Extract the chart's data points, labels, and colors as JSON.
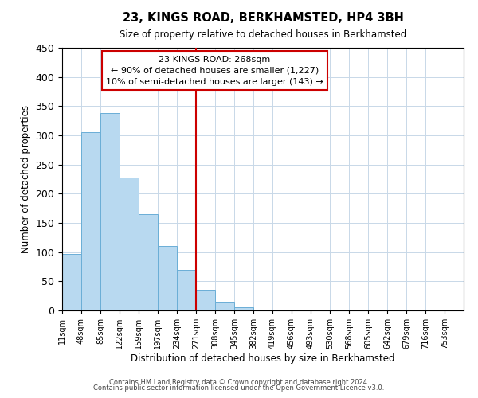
{
  "title": "23, KINGS ROAD, BERKHAMSTED, HP4 3BH",
  "subtitle": "Size of property relative to detached houses in Berkhamsted",
  "xlabel": "Distribution of detached houses by size in Berkhamsted",
  "ylabel": "Number of detached properties",
  "bin_labels": [
    "11sqm",
    "48sqm",
    "85sqm",
    "122sqm",
    "159sqm",
    "197sqm",
    "234sqm",
    "271sqm",
    "308sqm",
    "345sqm",
    "382sqm",
    "419sqm",
    "456sqm",
    "493sqm",
    "530sqm",
    "568sqm",
    "605sqm",
    "642sqm",
    "679sqm",
    "716sqm",
    "753sqm"
  ],
  "bar_values": [
    97,
    305,
    338,
    228,
    165,
    110,
    70,
    35,
    14,
    6,
    1,
    0,
    0,
    0,
    0,
    0,
    0,
    0,
    1,
    0,
    0
  ],
  "bar_color": "#b8d9f0",
  "bar_edge_color": "#6aaed6",
  "vline_x_index": 7,
  "vline_color": "#cc0000",
  "ylim": [
    0,
    450
  ],
  "yticks": [
    0,
    50,
    100,
    150,
    200,
    250,
    300,
    350,
    400,
    450
  ],
  "annotation_title": "23 KINGS ROAD: 268sqm",
  "annotation_line1": "← 90% of detached houses are smaller (1,227)",
  "annotation_line2": "10% of semi-detached houses are larger (143) →",
  "annotation_box_color": "#ffffff",
  "annotation_box_edge": "#cc0000",
  "footer_line1": "Contains HM Land Registry data © Crown copyright and database right 2024.",
  "footer_line2": "Contains public sector information licensed under the Open Government Licence v3.0.",
  "background_color": "#ffffff",
  "grid_color": "#c8d8e8"
}
